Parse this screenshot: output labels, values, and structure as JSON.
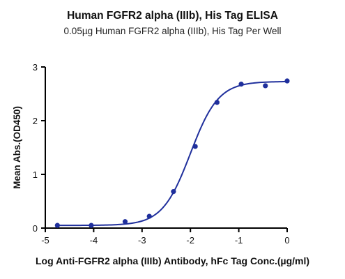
{
  "chart_data": {
    "type": "scatter",
    "title": "Human FGFR2 alpha (IIIb), His Tag ELISA",
    "subtitle": "0.05µg Human FGFR2 alpha (IIIb), His Tag Per Well",
    "xlabel": "Log Anti-FGFR2 alpha (IIIb) Antibody, hFc Tag Conc.(µg/ml)",
    "ylabel": "Mean Abs.(OD450)",
    "xlim": [
      -5,
      0
    ],
    "ylim": [
      0,
      3
    ],
    "x_ticks": [
      -5,
      -4,
      -3,
      -2,
      -1,
      0
    ],
    "y_ticks": [
      0,
      1,
      2,
      3
    ],
    "grid": false,
    "points": {
      "x": [
        -4.75,
        -4.05,
        -3.35,
        -2.85,
        -2.35,
        -1.9,
        -1.45,
        -0.95,
        -0.45,
        0.0
      ],
      "y": [
        0.05,
        0.05,
        0.12,
        0.22,
        0.68,
        1.52,
        2.34,
        2.68,
        2.65,
        2.74
      ]
    },
    "fit": {
      "model": "4PL",
      "bottom": 0.05,
      "top": 2.73,
      "logEC50": -2.0,
      "hill": 1.5,
      "x_range": [
        -4.75,
        0.0
      ]
    },
    "colors": {
      "series": "#1f2f9c",
      "axis": "#000000"
    }
  }
}
